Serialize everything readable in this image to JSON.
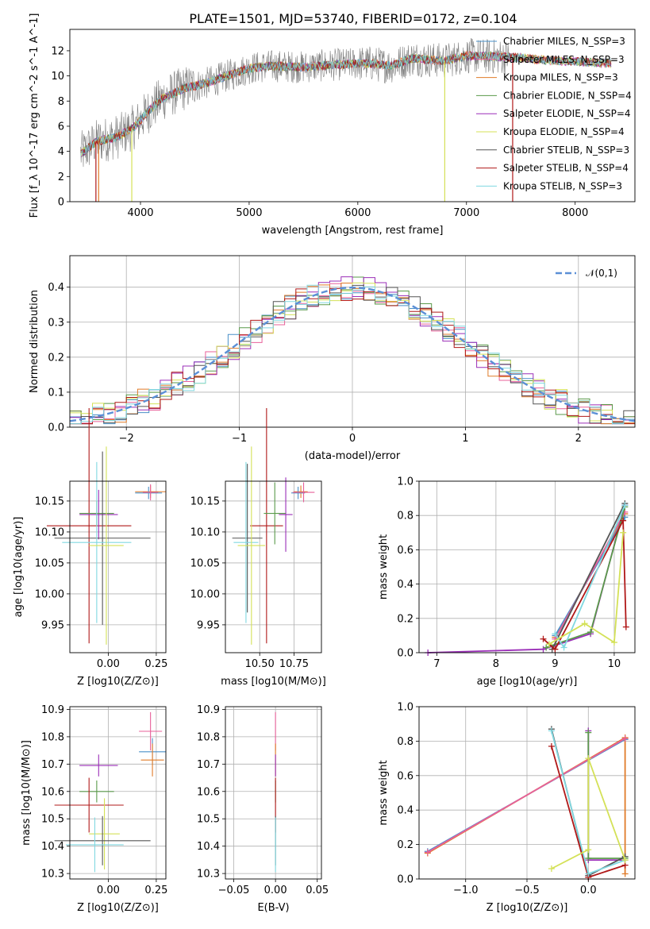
{
  "figure": {
    "title": "PLATE=1501, MJD=53740, FIBERID=0172, z=0.104"
  },
  "colors": {
    "chabrier_miles": "#4a90c8",
    "salpeter_miles": "#e8609a",
    "kroupa_miles": "#e07b28",
    "chabrier_elodie": "#5a9a4a",
    "salpeter_elodie": "#9b2fb8",
    "kroupa_elodie": "#d4e157",
    "chabrier_stelib": "#555555",
    "salpeter_stelib": "#b01818",
    "kroupa_stelib": "#80d8e0",
    "data": "#808080",
    "gaussian": "#5b8fd6",
    "grid": "#b0b0b0"
  },
  "chart_data": [
    {
      "type": "line",
      "title": "PLATE=1501, MJD=53740, FIBERID=0172, z=0.104",
      "xlabel": "wavelength [Angstrom, rest frame]",
      "ylabel": "Flux [f_λ 10^-17 erg cm^-2 s^-1 A^-1]",
      "xlim": [
        3350,
        8550
      ],
      "ylim": [
        0,
        13.7
      ],
      "xticks": [
        "4000",
        "5000",
        "6000",
        "7000",
        "8000"
      ],
      "yticks": [
        "0",
        "2",
        "4",
        "6",
        "8",
        "10",
        "12"
      ],
      "grid": false,
      "legend_position": "upper-right",
      "legend": [
        {
          "label": "Chabrier MILES, N_SSP=3",
          "color_key": "chabrier_miles"
        },
        {
          "label": "Salpeter MILES, N_SSP=3",
          "color_key": "salpeter_miles"
        },
        {
          "label": "Kroupa MILES, N_SSP=3",
          "color_key": "kroupa_miles"
        },
        {
          "label": "Chabrier ELODIE, N_SSP=4",
          "color_key": "chabrier_elodie"
        },
        {
          "label": "Salpeter ELODIE, N_SSP=4",
          "color_key": "salpeter_elodie"
        },
        {
          "label": "Kroupa ELODIE, N_SSP=4",
          "color_key": "kroupa_elodie"
        },
        {
          "label": "Chabrier STELIB, N_SSP=3",
          "color_key": "chabrier_stelib"
        },
        {
          "label": "Salpeter STELIB, N_SSP=4",
          "color_key": "salpeter_stelib"
        },
        {
          "label": "Kroupa STELIB, N_SSP=3",
          "color_key": "kroupa_stelib"
        }
      ],
      "continuum": [
        [
          3450,
          3.8
        ],
        [
          3600,
          4.8
        ],
        [
          3800,
          5.2
        ],
        [
          3950,
          6.0
        ],
        [
          4050,
          7.0
        ],
        [
          4200,
          8.2
        ],
        [
          4400,
          9.0
        ],
        [
          4600,
          9.4
        ],
        [
          4800,
          10.0
        ],
        [
          5000,
          10.6
        ],
        [
          5200,
          10.8
        ],
        [
          5500,
          10.7
        ],
        [
          5800,
          10.9
        ],
        [
          6100,
          11.0
        ],
        [
          6300,
          10.8
        ],
        [
          6500,
          11.4
        ],
        [
          6800,
          11.2
        ],
        [
          7000,
          11.6
        ],
        [
          7400,
          11.5
        ],
        [
          7800,
          11.2
        ],
        [
          8100,
          11.1
        ],
        [
          8300,
          11.0
        ]
      ],
      "data_x_range": [
        3450,
        7400
      ],
      "data_noise": 1.3,
      "drops": [
        {
          "x": 3590,
          "color_key": "salpeter_stelib"
        },
        {
          "x": 3615,
          "color_key": "kroupa_miles"
        },
        {
          "x": 3920,
          "color_key": "kroupa_elodie"
        },
        {
          "x": 6800,
          "color_key": "kroupa_elodie"
        },
        {
          "x": 7425,
          "color_key": "salpeter_stelib"
        }
      ]
    },
    {
      "type": "step",
      "xlabel": "(data-model)/error",
      "ylabel": "Normed distribution",
      "xlim": [
        -2.5,
        2.5
      ],
      "ylim": [
        0,
        0.49
      ],
      "xticks": [
        "−2",
        "−1",
        "0",
        "1",
        "2"
      ],
      "yticks": [
        "0.0",
        "0.1",
        "0.2",
        "0.3",
        "0.4"
      ],
      "grid": true,
      "legend_position": "upper-right",
      "legend": [
        {
          "label": "𝒩(0,1)",
          "style": "dashed",
          "color_key": "gaussian"
        }
      ],
      "bin_width": 0.1,
      "gaussian": {
        "mean": 0,
        "sigma": 1
      }
    },
    {
      "type": "scatter",
      "xlabel": "Z [log10(Z/Z⊙)]",
      "ylabel": "age [log10(age/yr)]",
      "xlim": [
        -0.2,
        0.3
      ],
      "ylim": [
        9.905,
        10.182
      ],
      "xticks": [
        "0.00",
        "0.25"
      ],
      "yticks": [
        "9.95",
        "10.00",
        "10.05",
        "10.10",
        "10.15"
      ],
      "grid": true,
      "points": [
        {
          "x": 0.22,
          "xe": 0.08,
          "y": 10.165,
          "ye": 0.01,
          "color_key": "kroupa_miles"
        },
        {
          "x": 0.21,
          "xe": 0.07,
          "y": 10.163,
          "ye": 0.01,
          "color_key": "chabrier_miles"
        },
        {
          "x": 0.22,
          "xe": 0.04,
          "y": 10.164,
          "ye": 0.013,
          "color_key": "salpeter_miles"
        },
        {
          "x": -0.1,
          "xe": 0.22,
          "y": 10.11,
          "ye": 0.19,
          "color_key": "salpeter_stelib"
        },
        {
          "x": -0.05,
          "xe": 0.1,
          "y": 10.128,
          "ye": 0.04,
          "color_key": "salpeter_elodie"
        },
        {
          "x": -0.06,
          "xe": 0.09,
          "y": 10.13,
          "ye": 0.02,
          "color_key": "chabrier_elodie"
        },
        {
          "x": -0.03,
          "xe": 0.25,
          "y": 10.09,
          "ye": 0.14,
          "color_key": "chabrier_stelib"
        },
        {
          "x": -0.06,
          "xe": 0.18,
          "y": 10.083,
          "ye": 0.13,
          "color_key": "kroupa_stelib"
        },
        {
          "x": -0.01,
          "xe": 0.09,
          "y": 10.078,
          "ye": 0.16,
          "color_key": "kroupa_elodie"
        }
      ]
    },
    {
      "type": "scatter",
      "xlabel": "mass [log10(M/M⊙)]",
      "ylabel": "",
      "xlim": [
        10.25,
        10.95
      ],
      "ylim": [
        9.905,
        10.182
      ],
      "xticks": [
        "10.50",
        "10.75"
      ],
      "yticks": [
        "9.95",
        "10.00",
        "10.05",
        "10.10",
        "10.15"
      ],
      "grid": true,
      "points": [
        {
          "x": 10.8,
          "xe": 0.05,
          "y": 10.165,
          "ye": 0.01,
          "color_key": "kroupa_miles"
        },
        {
          "x": 10.78,
          "xe": 0.05,
          "y": 10.163,
          "ye": 0.01,
          "color_key": "chabrier_miles"
        },
        {
          "x": 10.82,
          "xe": 0.08,
          "y": 10.164,
          "ye": 0.016,
          "color_key": "salpeter_miles"
        },
        {
          "x": 10.55,
          "xe": 0.12,
          "y": 10.11,
          "ye": 0.19,
          "color_key": "salpeter_stelib"
        },
        {
          "x": 10.69,
          "xe": 0.05,
          "y": 10.128,
          "ye": 0.06,
          "color_key": "salpeter_elodie"
        },
        {
          "x": 10.61,
          "xe": 0.08,
          "y": 10.13,
          "ye": 0.05,
          "color_key": "chabrier_elodie"
        },
        {
          "x": 10.41,
          "xe": 0.11,
          "y": 10.09,
          "ye": 0.12,
          "color_key": "chabrier_stelib"
        },
        {
          "x": 10.4,
          "xe": 0.09,
          "y": 10.083,
          "ye": 0.13,
          "color_key": "kroupa_stelib"
        },
        {
          "x": 10.44,
          "xe": 0.1,
          "y": 10.078,
          "ye": 0.16,
          "color_key": "kroupa_elodie"
        }
      ]
    },
    {
      "type": "line",
      "xlabel": "age [log10(age/yr)]",
      "ylabel": "mass weight",
      "xlim": [
        6.7,
        10.35
      ],
      "ylim": [
        0,
        1.0
      ],
      "xticks": [
        "7",
        "8",
        "9",
        "10"
      ],
      "yticks": [
        "0.0",
        "0.2",
        "0.4",
        "0.6",
        "0.8",
        "1.0"
      ],
      "grid": true,
      "series": [
        {
          "color_key": "kroupa_miles",
          "points": [
            [
              9.0,
              0.09
            ],
            [
              10.18,
              0.81
            ]
          ]
        },
        {
          "color_key": "chabrier_miles",
          "points": [
            [
              9.0,
              0.1
            ],
            [
              10.18,
              0.79
            ]
          ]
        },
        {
          "color_key": "salpeter_miles",
          "points": [
            [
              9.0,
              0.08
            ],
            [
              10.18,
              0.82
            ]
          ]
        },
        {
          "color_key": "salpeter_elodie",
          "points": [
            [
              6.85,
              0.0
            ],
            [
              8.8,
              0.02
            ],
            [
              9.6,
              0.11
            ],
            [
              10.18,
              0.86
            ]
          ]
        },
        {
          "color_key": "chabrier_elodie",
          "points": [
            [
              8.85,
              0.03
            ],
            [
              9.6,
              0.12
            ],
            [
              10.18,
              0.85
            ]
          ]
        },
        {
          "color_key": "chabrier_stelib",
          "points": [
            [
              8.95,
              0.02
            ],
            [
              10.18,
              0.87
            ]
          ]
        },
        {
          "color_key": "salpeter_stelib",
          "points": [
            [
              8.8,
              0.08
            ],
            [
              9.0,
              0.02
            ],
            [
              10.15,
              0.77
            ],
            [
              10.2,
              0.15
            ]
          ]
        },
        {
          "color_key": "kroupa_stelib",
          "points": [
            [
              9.0,
              0.11
            ],
            [
              9.15,
              0.03
            ],
            [
              10.18,
              0.86
            ]
          ]
        },
        {
          "color_key": "kroupa_elodie",
          "points": [
            [
              8.9,
              0.05
            ],
            [
              9.5,
              0.17
            ],
            [
              10.0,
              0.06
            ],
            [
              10.15,
              0.7
            ]
          ]
        }
      ]
    },
    {
      "type": "scatter",
      "xlabel": "Z [log10(Z/Z⊙)]",
      "ylabel": "mass [log10(M/M⊙)]",
      "xlim": [
        -0.2,
        0.3
      ],
      "ylim": [
        10.28,
        10.91
      ],
      "xticks": [
        "0.00",
        "0.25"
      ],
      "yticks": [
        "10.3",
        "10.4",
        "10.5",
        "10.6",
        "10.7",
        "10.8",
        "10.9"
      ],
      "grid": true,
      "points": [
        {
          "x": 0.22,
          "xe": 0.06,
          "y": 10.82,
          "ye": 0.07,
          "color_key": "salpeter_miles"
        },
        {
          "x": 0.23,
          "xe": 0.07,
          "y": 10.745,
          "ye": 0.05,
          "color_key": "chabrier_miles"
        },
        {
          "x": 0.23,
          "xe": 0.06,
          "y": 10.715,
          "ye": 0.06,
          "color_key": "kroupa_miles"
        },
        {
          "x": -0.05,
          "xe": 0.1,
          "y": 10.695,
          "ye": 0.04,
          "color_key": "salpeter_elodie"
        },
        {
          "x": -0.06,
          "xe": 0.09,
          "y": 10.6,
          "ye": 0.04,
          "color_key": "chabrier_elodie"
        },
        {
          "x": -0.1,
          "xe": 0.18,
          "y": 10.55,
          "ye": 0.1,
          "color_key": "salpeter_stelib"
        },
        {
          "x": -0.02,
          "xe": 0.08,
          "y": 10.445,
          "ye": 0.13,
          "color_key": "kroupa_elodie"
        },
        {
          "x": -0.03,
          "xe": 0.25,
          "y": 10.42,
          "ye": 0.09,
          "color_key": "chabrier_stelib"
        },
        {
          "x": -0.07,
          "xe": 0.15,
          "y": 10.405,
          "ye": 0.1,
          "color_key": "kroupa_stelib"
        }
      ]
    },
    {
      "type": "scatter",
      "xlabel": "E(B-V)",
      "ylabel": "",
      "xlim": [
        -0.06,
        0.055
      ],
      "ylim": [
        10.28,
        10.91
      ],
      "xticks": [
        "−0.05",
        "0.00",
        "0.05"
      ],
      "yticks": [
        "10.3",
        "10.4",
        "10.5",
        "10.6",
        "10.7",
        "10.8",
        "10.9"
      ],
      "grid": true,
      "points": [
        {
          "x": 0.0,
          "xe": 0.0,
          "y": 10.82,
          "ye": 0.07,
          "color_key": "salpeter_miles"
        },
        {
          "x": 0.0,
          "xe": 0.0,
          "y": 10.715,
          "ye": 0.06,
          "color_key": "kroupa_miles"
        },
        {
          "x": 0.0,
          "xe": 0.0,
          "y": 10.695,
          "ye": 0.04,
          "color_key": "salpeter_elodie"
        },
        {
          "x": 0.0,
          "xe": 0.0,
          "y": 10.6,
          "ye": 0.04,
          "color_key": "chabrier_elodie"
        },
        {
          "x": 0.0,
          "xe": 0.0,
          "y": 10.55,
          "ye": 0.1,
          "color_key": "salpeter_stelib"
        },
        {
          "x": 0.0,
          "xe": 0.0,
          "y": 10.42,
          "ye": 0.09,
          "color_key": "chabrier_stelib"
        },
        {
          "x": 0.0,
          "xe": 0.0,
          "y": 10.405,
          "ye": 0.1,
          "color_key": "kroupa_stelib"
        }
      ]
    },
    {
      "type": "line",
      "xlabel": "Z [log10(Z/Z⊙)]",
      "ylabel": "mass weight",
      "xlim": [
        -1.38,
        0.38
      ],
      "ylim": [
        0,
        1.0
      ],
      "xticks": [
        "−1.0",
        "−0.5",
        "0.0"
      ],
      "yticks": [
        "0.0",
        "0.2",
        "0.4",
        "0.6",
        "0.8",
        "1.0"
      ],
      "grid": true,
      "series": [
        {
          "color_key": "chabrier_miles",
          "points": [
            [
              -1.31,
              0.16
            ],
            [
              0.3,
              0.81
            ]
          ]
        },
        {
          "color_key": "kroupa_miles",
          "points": [
            [
              -1.31,
              0.15
            ],
            [
              0.3,
              0.82
            ],
            [
              0.3,
              0.03
            ]
          ]
        },
        {
          "color_key": "salpeter_miles",
          "points": [
            [
              -1.31,
              0.155
            ],
            [
              0.3,
              0.815
            ]
          ]
        },
        {
          "color_key": "salpeter_elodie",
          "points": [
            [
              0.0,
              0.86
            ],
            [
              0.0,
              0.11
            ],
            [
              0.3,
              0.11
            ]
          ]
        },
        {
          "color_key": "chabrier_elodie",
          "points": [
            [
              0.0,
              0.85
            ],
            [
              0.0,
              0.12
            ],
            [
              0.3,
              0.12
            ]
          ]
        },
        {
          "color_key": "chabrier_stelib",
          "points": [
            [
              -0.3,
              0.87
            ],
            [
              0.0,
              0.02
            ],
            [
              0.3,
              0.13
            ]
          ]
        },
        {
          "color_key": "salpeter_stelib",
          "points": [
            [
              -0.3,
              0.77
            ],
            [
              0.0,
              0.01
            ],
            [
              0.3,
              0.08
            ]
          ]
        },
        {
          "color_key": "kroupa_stelib",
          "points": [
            [
              -0.3,
              0.86
            ],
            [
              0.0,
              0.03
            ],
            [
              0.3,
              0.11
            ]
          ]
        },
        {
          "color_key": "kroupa_elodie",
          "points": [
            [
              -0.3,
              0.06
            ],
            [
              0.0,
              0.17
            ],
            [
              0.0,
              0.7
            ],
            [
              0.3,
              0.11
            ]
          ]
        }
      ]
    }
  ]
}
